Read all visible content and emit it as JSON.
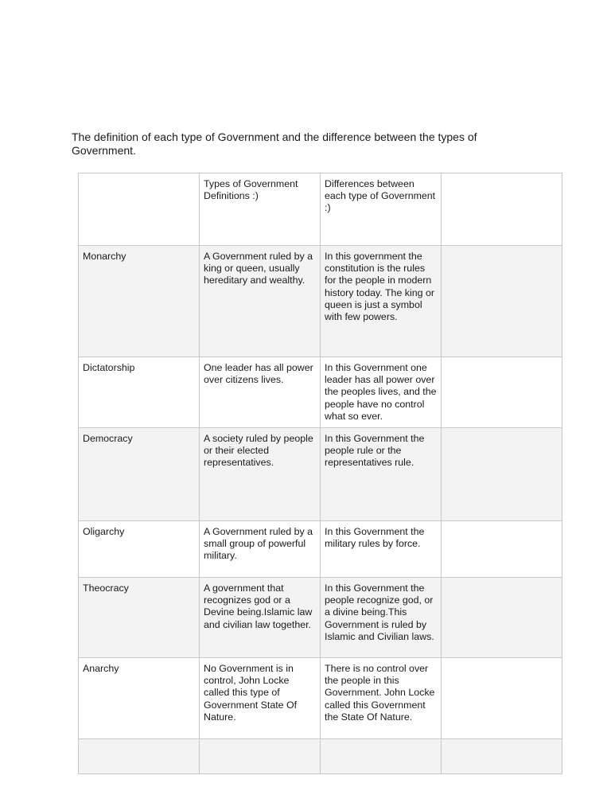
{
  "title": "The definition of each type of Government and the difference between the types of Government.",
  "table": {
    "header": [
      "",
      "Types of Government Definitions :)",
      "Differences between each type of Government :)",
      ""
    ],
    "rows": [
      [
        "Monarchy",
        "A Government ruled by a king or queen, usually hereditary and wealthy.",
        "In this government the constitution is the rules for the people in modern history today. The king or queen is just a symbol with few powers.",
        ""
      ],
      [
        "Dictatorship",
        "One leader has all power over citizens  lives.",
        "In this Government one leader has all power over the peoples lives, and the people have no control what so ever.",
        ""
      ],
      [
        "Democracy",
        "A society ruled by people or their elected representatives.",
        "In this Government the people rule or the representatives rule.",
        ""
      ],
      [
        "Oligarchy",
        "A Government ruled by a small group of powerful military.",
        "In this Government the military rules by force.",
        ""
      ],
      [
        "Theocracy",
        "A government that recognizes god or a Devine being.Islamic law and civilian law together.",
        "In this Government the people recognize god, or a divine being.This Government is ruled by Islamic and Civilian laws.",
        ""
      ],
      [
        "Anarchy",
        "No Government is in control, John Locke called this type of Government State Of Nature.",
        "There is no control over the people in this Government. John Locke called this Government the State Of Nature.",
        ""
      ],
      [
        "",
        "",
        "",
        ""
      ]
    ]
  }
}
